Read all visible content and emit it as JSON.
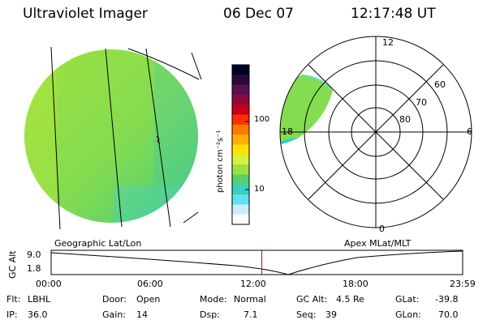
{
  "header": {
    "title": "Ultraviolet Imager",
    "date": "06 Dec 07",
    "time": "12:17:48 UT"
  },
  "colorbar": {
    "unit_label": "photon cm⁻²s⁻¹",
    "ticks": [
      "100",
      "10"
    ],
    "colors": [
      "#000022",
      "#2a0a3a",
      "#5a1050",
      "#8a0a3c",
      "#c80018",
      "#ff3000",
      "#ff7a00",
      "#ffb000",
      "#ffe000",
      "#d8f040",
      "#9ee040",
      "#58d070",
      "#38d0c0",
      "#60e0f0",
      "#c8eef8",
      "#ffffff"
    ]
  },
  "geo_panel": {
    "caption": "Geographic Lat/Lon"
  },
  "polar_panel": {
    "caption": "Apex MLat/MLT",
    "mlt_labels": [
      "12",
      "18",
      "6",
      "0"
    ],
    "lat_labels": [
      "60",
      "70",
      "80"
    ]
  },
  "timeline": {
    "ylabel": "GC Alt",
    "yticks": [
      "9.0",
      "1.8"
    ],
    "xticks": [
      "00:00",
      "06:00",
      "12:00",
      "18:00",
      "23:59"
    ],
    "current_fraction": 0.512
  },
  "info": {
    "flt_label": "Flt:",
    "flt": "LBHL",
    "ip_label": "IP:",
    "ip": "36.0",
    "door_label": "Door:",
    "door": "Open",
    "gain_label": "Gain:",
    "gain": "14",
    "mode_label": "Mode:",
    "mode": "Normal",
    "dsp_label": "Dsp:",
    "dsp": "7.1",
    "gcalt_label": "GC Alt:",
    "gcalt": "4.5 Re",
    "seq_label": "Seq:",
    "seq": "39",
    "glat_label": "GLat:",
    "glat": "-39.8",
    "glon_label": "GLon:",
    "glon": "70.0"
  }
}
